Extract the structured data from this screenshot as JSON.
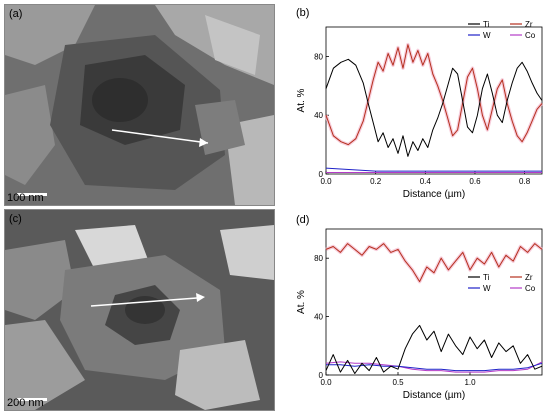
{
  "panels": {
    "a": {
      "label": "(a)",
      "scalebar": "100 nm"
    },
    "b": {
      "label": "(b)"
    },
    "c": {
      "label": "(c)",
      "scalebar": "200 nm"
    },
    "d": {
      "label": "(d)"
    }
  },
  "chart_data": [
    {
      "type": "line",
      "panel": "(b)",
      "xlabel": "Distance (µm)",
      "ylabel": "At. %",
      "xlim": [
        0.0,
        0.87
      ],
      "ylim": [
        0,
        100
      ],
      "xticks": [
        0.0,
        0.2,
        0.4,
        0.6,
        0.8
      ],
      "xtick_labels": [
        "0.0",
        "0.2",
        "0.4",
        "0.6",
        "0.8"
      ],
      "yticks": [
        0,
        40,
        80
      ],
      "ytick_labels": [
        "0",
        "40",
        "80"
      ],
      "legend": "top-right, two columns",
      "series": [
        {
          "name": "Ti",
          "color": "#000000",
          "x": [
            0.0,
            0.03,
            0.06,
            0.09,
            0.12,
            0.15,
            0.17,
            0.19,
            0.21,
            0.23,
            0.25,
            0.27,
            0.29,
            0.31,
            0.33,
            0.35,
            0.37,
            0.39,
            0.41,
            0.43,
            0.45,
            0.47,
            0.49,
            0.51,
            0.53,
            0.55,
            0.57,
            0.59,
            0.61,
            0.63,
            0.65,
            0.67,
            0.69,
            0.71,
            0.73,
            0.75,
            0.77,
            0.79,
            0.81,
            0.83,
            0.85,
            0.87
          ],
          "y": [
            58,
            72,
            76,
            78,
            74,
            62,
            48,
            35,
            22,
            28,
            18,
            24,
            14,
            26,
            12,
            22,
            16,
            24,
            18,
            30,
            38,
            48,
            60,
            72,
            68,
            50,
            32,
            28,
            40,
            58,
            68,
            55,
            40,
            35,
            50,
            62,
            72,
            76,
            70,
            62,
            55,
            50
          ]
        },
        {
          "name": "Zr",
          "color": "#b5301e",
          "x": [
            0.0,
            0.03,
            0.06,
            0.09,
            0.12,
            0.15,
            0.17,
            0.19,
            0.21,
            0.23,
            0.25,
            0.27,
            0.29,
            0.31,
            0.33,
            0.35,
            0.37,
            0.39,
            0.41,
            0.43,
            0.45,
            0.47,
            0.49,
            0.51,
            0.53,
            0.55,
            0.57,
            0.59,
            0.61,
            0.63,
            0.65,
            0.67,
            0.69,
            0.71,
            0.73,
            0.75,
            0.77,
            0.79,
            0.81,
            0.83,
            0.85,
            0.87
          ],
          "y": [
            40,
            26,
            22,
            20,
            24,
            36,
            50,
            64,
            76,
            70,
            82,
            74,
            86,
            72,
            88,
            76,
            84,
            74,
            82,
            68,
            60,
            50,
            38,
            26,
            30,
            48,
            66,
            72,
            58,
            40,
            30,
            44,
            58,
            64,
            48,
            36,
            26,
            22,
            28,
            36,
            44,
            48
          ]
        },
        {
          "name": "W",
          "color": "#1f22c8",
          "x": [
            0.0,
            0.1,
            0.2,
            0.3,
            0.4,
            0.5,
            0.6,
            0.7,
            0.8,
            0.87
          ],
          "y": [
            4,
            3,
            2,
            2,
            2,
            2,
            2,
            2,
            2,
            2
          ]
        },
        {
          "name": "Co",
          "color": "#b43bc8",
          "x": [
            0.0,
            0.1,
            0.2,
            0.3,
            0.4,
            0.5,
            0.6,
            0.7,
            0.8,
            0.87
          ],
          "y": [
            1,
            1,
            1,
            1,
            1,
            1,
            1,
            1,
            1,
            1
          ]
        }
      ]
    },
    {
      "type": "line",
      "panel": "(d)",
      "xlabel": "Distance (µm)",
      "ylabel": "At. %",
      "xlim": [
        0.0,
        1.5
      ],
      "ylim": [
        0,
        100
      ],
      "xticks": [
        0.0,
        0.5,
        1.0
      ],
      "xtick_labels": [
        "0.0",
        "0.5",
        "1.0"
      ],
      "yticks": [
        0,
        40,
        80
      ],
      "ytick_labels": [
        "0",
        "40",
        "80"
      ],
      "legend": "middle-right, two columns",
      "series": [
        {
          "name": "Ti",
          "color": "#000000",
          "x": [
            0.0,
            0.05,
            0.1,
            0.15,
            0.2,
            0.25,
            0.3,
            0.35,
            0.4,
            0.45,
            0.5,
            0.55,
            0.6,
            0.65,
            0.7,
            0.75,
            0.8,
            0.85,
            0.9,
            0.95,
            1.0,
            1.05,
            1.1,
            1.15,
            1.2,
            1.25,
            1.3,
            1.35,
            1.4,
            1.45,
            1.5
          ],
          "y": [
            3,
            14,
            2,
            10,
            1,
            8,
            3,
            12,
            2,
            6,
            4,
            18,
            28,
            34,
            24,
            30,
            16,
            28,
            20,
            14,
            26,
            18,
            24,
            12,
            22,
            16,
            20,
            8,
            14,
            4,
            6
          ]
        },
        {
          "name": "Zr",
          "color": "#b5301e",
          "x": [
            0.0,
            0.05,
            0.1,
            0.15,
            0.2,
            0.25,
            0.3,
            0.35,
            0.4,
            0.45,
            0.5,
            0.55,
            0.6,
            0.65,
            0.7,
            0.75,
            0.8,
            0.85,
            0.9,
            0.95,
            1.0,
            1.05,
            1.1,
            1.15,
            1.2,
            1.25,
            1.3,
            1.35,
            1.4,
            1.45,
            1.5
          ],
          "y": [
            86,
            88,
            84,
            90,
            86,
            82,
            88,
            86,
            90,
            84,
            86,
            78,
            72,
            64,
            74,
            70,
            80,
            72,
            78,
            84,
            72,
            80,
            76,
            84,
            74,
            82,
            78,
            88,
            84,
            90,
            86
          ]
        },
        {
          "name": "W",
          "color": "#1f22c8",
          "x": [
            0.0,
            0.1,
            0.2,
            0.3,
            0.4,
            0.5,
            0.6,
            0.7,
            0.8,
            0.9,
            1.0,
            1.1,
            1.2,
            1.3,
            1.4,
            1.5
          ],
          "y": [
            7,
            7,
            6,
            7,
            6,
            6,
            5,
            4,
            4,
            3,
            3,
            3,
            4,
            4,
            5,
            8
          ]
        },
        {
          "name": "Co",
          "color": "#b43bc8",
          "x": [
            0.0,
            0.1,
            0.2,
            0.3,
            0.4,
            0.5,
            0.6,
            0.7,
            0.8,
            0.9,
            1.0,
            1.1,
            1.2,
            1.3,
            1.4,
            1.5
          ],
          "y": [
            8,
            9,
            8,
            8,
            7,
            6,
            4,
            3,
            3,
            2,
            2,
            2,
            3,
            3,
            4,
            9
          ]
        }
      ]
    }
  ]
}
